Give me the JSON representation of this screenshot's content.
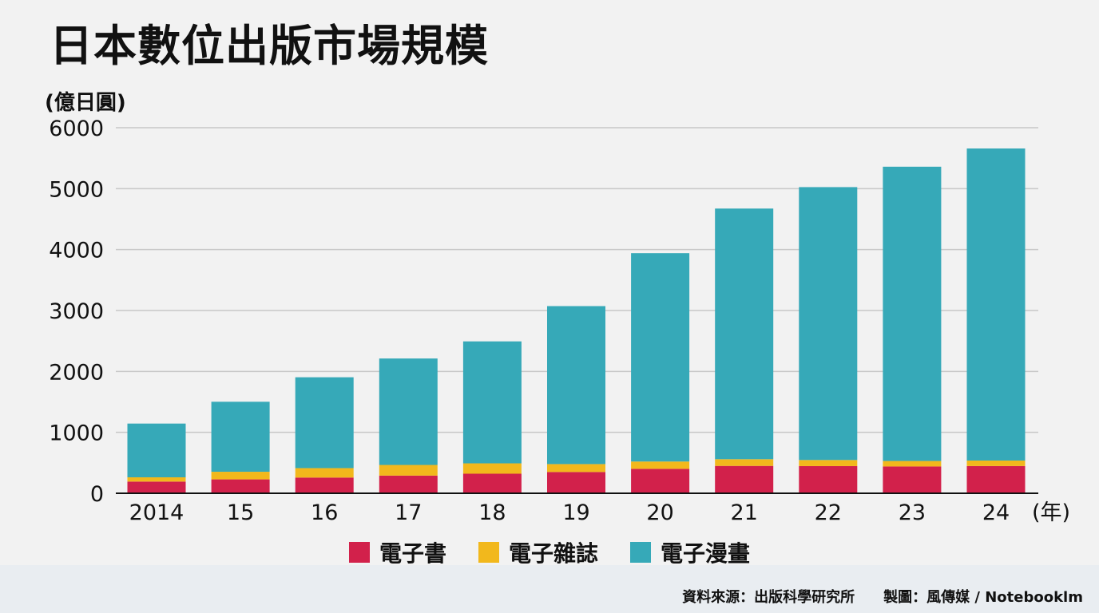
{
  "header": {
    "title": "日本數位出版市場規模",
    "unit_label": "(億日圓)"
  },
  "footer": {
    "source": "資料來源：出版科學研究所　　製圖：風傳媒 / Notebooklm"
  },
  "colors": {
    "ebook": "#d2214b",
    "emagazine": "#f2b81c",
    "ecomic": "#36a9b8",
    "gridline": "#c8c8c8",
    "axis": "#111111"
  },
  "chart_data": {
    "type": "bar",
    "stacked": true,
    "title": "日本數位出版市場規模",
    "ylabel": "(億日圓)",
    "xlabel": "(年)",
    "ylim": [
      0,
      6000
    ],
    "yticks": [
      0,
      1000,
      2000,
      3000,
      4000,
      5000,
      6000
    ],
    "categories": [
      "2014",
      "15",
      "16",
      "17",
      "18",
      "19",
      "20",
      "21",
      "22",
      "23",
      "24"
    ],
    "series": [
      {
        "name": "電子書",
        "color": "#d2214b",
        "values": [
          192,
          228,
          258,
          290,
          321,
          349,
          401,
          449,
          446,
          440,
          447
        ]
      },
      {
        "name": "電子雜誌",
        "color": "#f2b81c",
        "values": [
          70,
          125,
          155,
          175,
          170,
          130,
          120,
          110,
          100,
          90,
          90
        ]
      },
      {
        "name": "電子漫畫",
        "color": "#36a9b8",
        "values": [
          882,
          1149,
          1491,
          1747,
          2002,
          2593,
          3420,
          4114,
          4479,
          4830,
          5122
        ]
      }
    ],
    "legend_position": "bottom",
    "grid": true
  }
}
